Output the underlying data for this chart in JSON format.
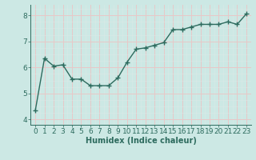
{
  "x": [
    0,
    1,
    2,
    3,
    4,
    5,
    6,
    7,
    8,
    9,
    10,
    11,
    12,
    13,
    14,
    15,
    16,
    17,
    18,
    19,
    20,
    21,
    22,
    23
  ],
  "y": [
    4.35,
    6.35,
    6.05,
    6.1,
    5.55,
    5.55,
    5.3,
    5.3,
    5.3,
    5.6,
    6.2,
    6.7,
    6.75,
    6.85,
    6.95,
    7.45,
    7.45,
    7.55,
    7.65,
    7.65,
    7.65,
    7.75,
    7.65,
    8.05
  ],
  "line_color": "#2d6b5e",
  "marker": "+",
  "markersize": 4.0,
  "linewidth": 1.0,
  "bg_color": "#cce8e4",
  "grid_major_color": "#e8c8c8",
  "grid_minor_color": "#dcdcdc",
  "xlabel": "Humidex (Indice chaleur)",
  "xlabel_fontsize": 7,
  "xlim": [
    -0.5,
    23.5
  ],
  "ylim": [
    3.8,
    8.4
  ],
  "yticks": [
    4,
    5,
    6,
    7,
    8
  ],
  "xticks": [
    0,
    1,
    2,
    3,
    4,
    5,
    6,
    7,
    8,
    9,
    10,
    11,
    12,
    13,
    14,
    15,
    16,
    17,
    18,
    19,
    20,
    21,
    22,
    23
  ],
  "tick_fontsize": 6.5
}
